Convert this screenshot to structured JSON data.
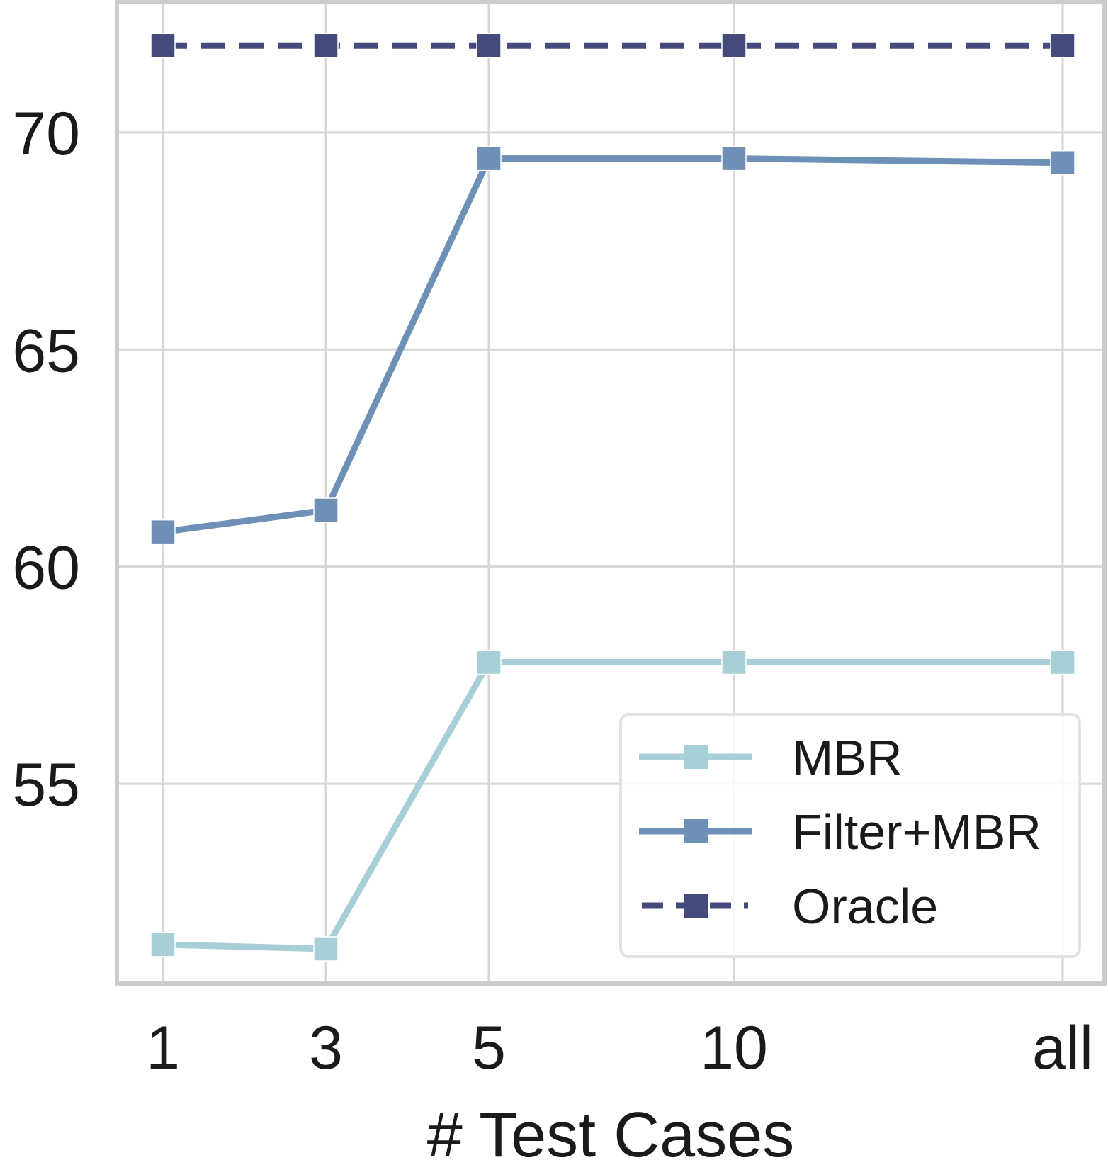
{
  "chart_data": {
    "type": "line",
    "categories": [
      "1",
      "3",
      "5",
      "10",
      "all"
    ],
    "xlabel": "# Test Cases",
    "ylabel": "",
    "ylim": [
      50.4,
      73.0
    ],
    "yticks": [
      55,
      60,
      65,
      70
    ],
    "grid": true,
    "legend": {
      "placement": "lower-right"
    },
    "series": [
      {
        "name": "MBR",
        "values": [
          51.3,
          51.2,
          57.8,
          57.8,
          57.8
        ],
        "color": "#a6cfd6",
        "style": "solid",
        "marker": "square"
      },
      {
        "name": "Filter+MBR",
        "values": [
          60.8,
          61.3,
          69.4,
          69.4,
          69.3
        ],
        "color": "#6e8fb6",
        "style": "solid",
        "marker": "square"
      },
      {
        "name": "Oracle",
        "values": [
          72.0,
          72.0,
          72.0,
          72.0,
          72.0
        ],
        "color": "#454a7c",
        "style": "dashed",
        "marker": "square"
      }
    ]
  }
}
